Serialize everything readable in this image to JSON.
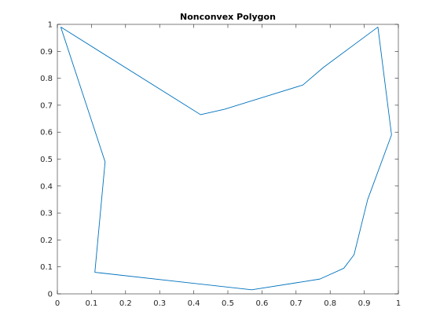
{
  "chart_data": {
    "type": "line",
    "title": "Nonconvex Polygon",
    "xlabel": "",
    "ylabel": "",
    "xlim": [
      0,
      1
    ],
    "ylim": [
      0,
      1
    ],
    "xticks": [
      "0",
      "0.1",
      "0.2",
      "0.3",
      "0.4",
      "0.5",
      "0.6",
      "0.7",
      "0.8",
      "0.9",
      "1"
    ],
    "yticks": [
      "0",
      "0.1",
      "0.2",
      "0.3",
      "0.4",
      "0.5",
      "0.6",
      "0.7",
      "0.8",
      "0.9",
      "1"
    ],
    "grid": false,
    "series": [
      {
        "color": "#0072bd",
        "x": [
          0.01,
          0.14,
          0.11,
          0.57,
          0.77,
          0.84,
          0.87,
          0.91,
          0.98,
          0.94,
          0.78,
          0.72,
          0.49,
          0.42,
          0.01
        ],
        "y": [
          0.99,
          0.49,
          0.08,
          0.015,
          0.055,
          0.095,
          0.145,
          0.35,
          0.59,
          0.99,
          0.84,
          0.775,
          0.685,
          0.665,
          0.99
        ]
      }
    ]
  }
}
